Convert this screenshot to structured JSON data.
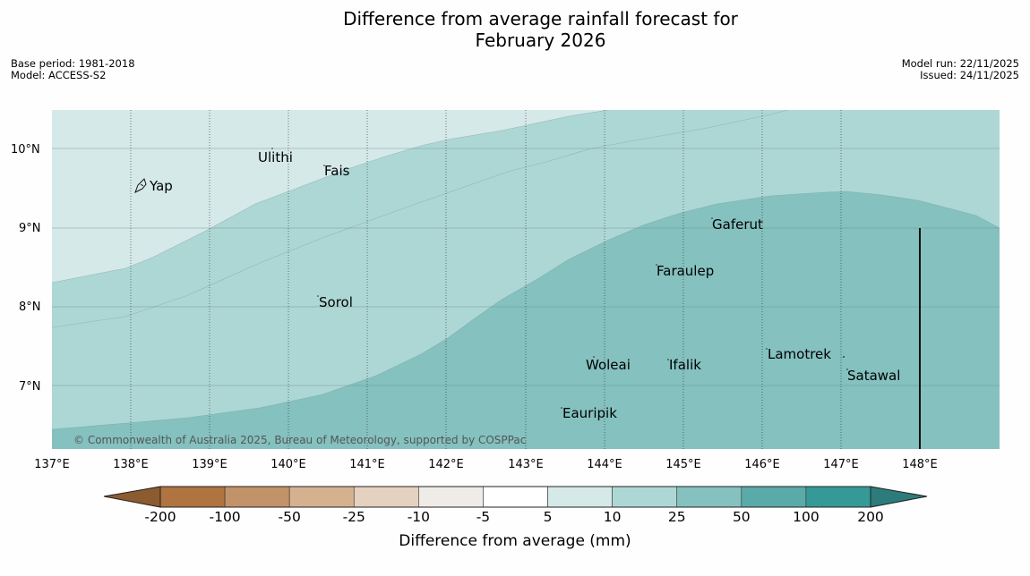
{
  "title": {
    "line1": "Difference from average rainfall forecast for",
    "line2": "February 2026"
  },
  "meta": {
    "base_period": "Base period: 1981-2018",
    "model": "Model: ACCESS-S2",
    "model_run": "Model run: 22/11/2025",
    "issued": "Issued: 24/11/2025"
  },
  "map": {
    "lon_ticks": [
      "137°E",
      "138°E",
      "139°E",
      "140°E",
      "141°E",
      "142°E",
      "143°E",
      "144°E",
      "145°E",
      "146°E",
      "147°E",
      "148°E"
    ],
    "lat_ticks": [
      "10°N",
      "9°N",
      "8°N",
      "7°N"
    ],
    "places": [
      {
        "name": "Ulithi"
      },
      {
        "name": "Fais"
      },
      {
        "name": "Yap"
      },
      {
        "name": "Gaferut"
      },
      {
        "name": "Faraulep"
      },
      {
        "name": "Sorol"
      },
      {
        "name": "Woleai"
      },
      {
        "name": "Ifalik"
      },
      {
        "name": "Lamotrek"
      },
      {
        "name": "Satawal"
      },
      {
        "name": "Eauripik"
      }
    ],
    "copyright": "© Commonwealth of Australia 2025, Bureau of Meteorology, supported by COSPPac"
  },
  "colorbar": {
    "title": "Difference from average (mm)",
    "labels": [
      "-200",
      "-100",
      "-50",
      "-25",
      "-10",
      "-5",
      "5",
      "10",
      "25",
      "50",
      "100",
      "200"
    ],
    "colors": [
      "#b07440",
      "#c29268",
      "#d5b190",
      "#e5d1c0",
      "#efebe7",
      "#ffffff",
      "#d5e9e8",
      "#add7d5",
      "#84c1bf",
      "#5aaaa9",
      "#359998"
    ],
    "low_extend_color": "#8c5b2f",
    "high_extend_color": "#2b7c7a"
  },
  "zone_colors": {
    "5_to_10": "#d5e9e8",
    "10_to_25": "#add7d5",
    "25_to_50": "#84c1bf"
  }
}
